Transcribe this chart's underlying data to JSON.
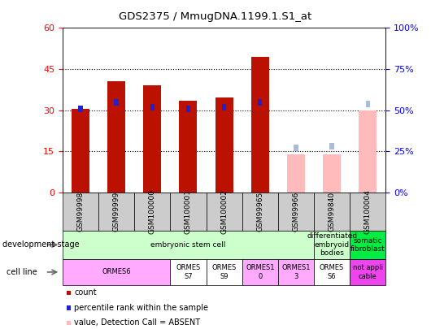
{
  "title": "GDS2375 / MmugDNA.1199.1.S1_at",
  "samples": [
    "GSM99998",
    "GSM99999",
    "GSM100000",
    "GSM100001",
    "GSM100002",
    "GSM99965",
    "GSM99966",
    "GSM99840",
    "GSM100004"
  ],
  "count_values": [
    30.5,
    40.5,
    39.0,
    33.5,
    34.5,
    49.5,
    null,
    null,
    null
  ],
  "rank_values": [
    51.0,
    55.0,
    52.0,
    51.0,
    52.0,
    55.0,
    null,
    null,
    null
  ],
  "absent_count_values": [
    null,
    null,
    null,
    null,
    null,
    null,
    14.0,
    14.0,
    30.0
  ],
  "absent_rank_values": [
    null,
    null,
    null,
    null,
    null,
    null,
    27.0,
    28.0,
    54.0
  ],
  "left_ylim": [
    0,
    60
  ],
  "right_ylim": [
    0,
    100
  ],
  "left_yticks": [
    0,
    15,
    30,
    45,
    60
  ],
  "right_yticks": [
    0,
    25,
    50,
    75,
    100
  ],
  "left_ytick_labels": [
    "0",
    "15",
    "30",
    "45",
    "60"
  ],
  "right_ytick_labels": [
    "0%",
    "25%",
    "50%",
    "75%",
    "100%"
  ],
  "bar_color": "#bb1100",
  "rank_color": "#2222cc",
  "absent_bar_color": "#ffbbbb",
  "absent_rank_color": "#aabbdd",
  "grid_color": "#222222",
  "plot_bg": "#ffffff",
  "dev_stage_groups": [
    {
      "label": "embryonic stem cell",
      "start": 0,
      "end": 7,
      "color": "#ccffcc"
    },
    {
      "label": "differentiated\nembryoid\nbodies",
      "start": 7,
      "end": 8,
      "color": "#ccffcc"
    },
    {
      "label": "somatic\nfibroblast",
      "start": 8,
      "end": 9,
      "color": "#00ee44"
    }
  ],
  "cell_line_groups": [
    {
      "label": "ORMES6",
      "start": 0,
      "end": 3,
      "color": "#ffaaff"
    },
    {
      "label": "ORMES\nS7",
      "start": 3,
      "end": 4,
      "color": "#ffffff"
    },
    {
      "label": "ORMES\nS9",
      "start": 4,
      "end": 5,
      "color": "#ffffff"
    },
    {
      "label": "ORMES1\n0",
      "start": 5,
      "end": 6,
      "color": "#ffaaff"
    },
    {
      "label": "ORMES1\n3",
      "start": 6,
      "end": 7,
      "color": "#ffaaff"
    },
    {
      "label": "ORMES\nS6",
      "start": 7,
      "end": 8,
      "color": "#ffffff"
    },
    {
      "label": "not appli\ncable",
      "start": 8,
      "end": 9,
      "color": "#ee44ee"
    }
  ],
  "legend_items": [
    {
      "color": "#bb1100",
      "label": "count"
    },
    {
      "color": "#2222cc",
      "label": "percentile rank within the sample"
    },
    {
      "color": "#ffbbbb",
      "label": "value, Detection Call = ABSENT"
    },
    {
      "color": "#aabbdd",
      "label": "rank, Detection Call = ABSENT"
    }
  ]
}
